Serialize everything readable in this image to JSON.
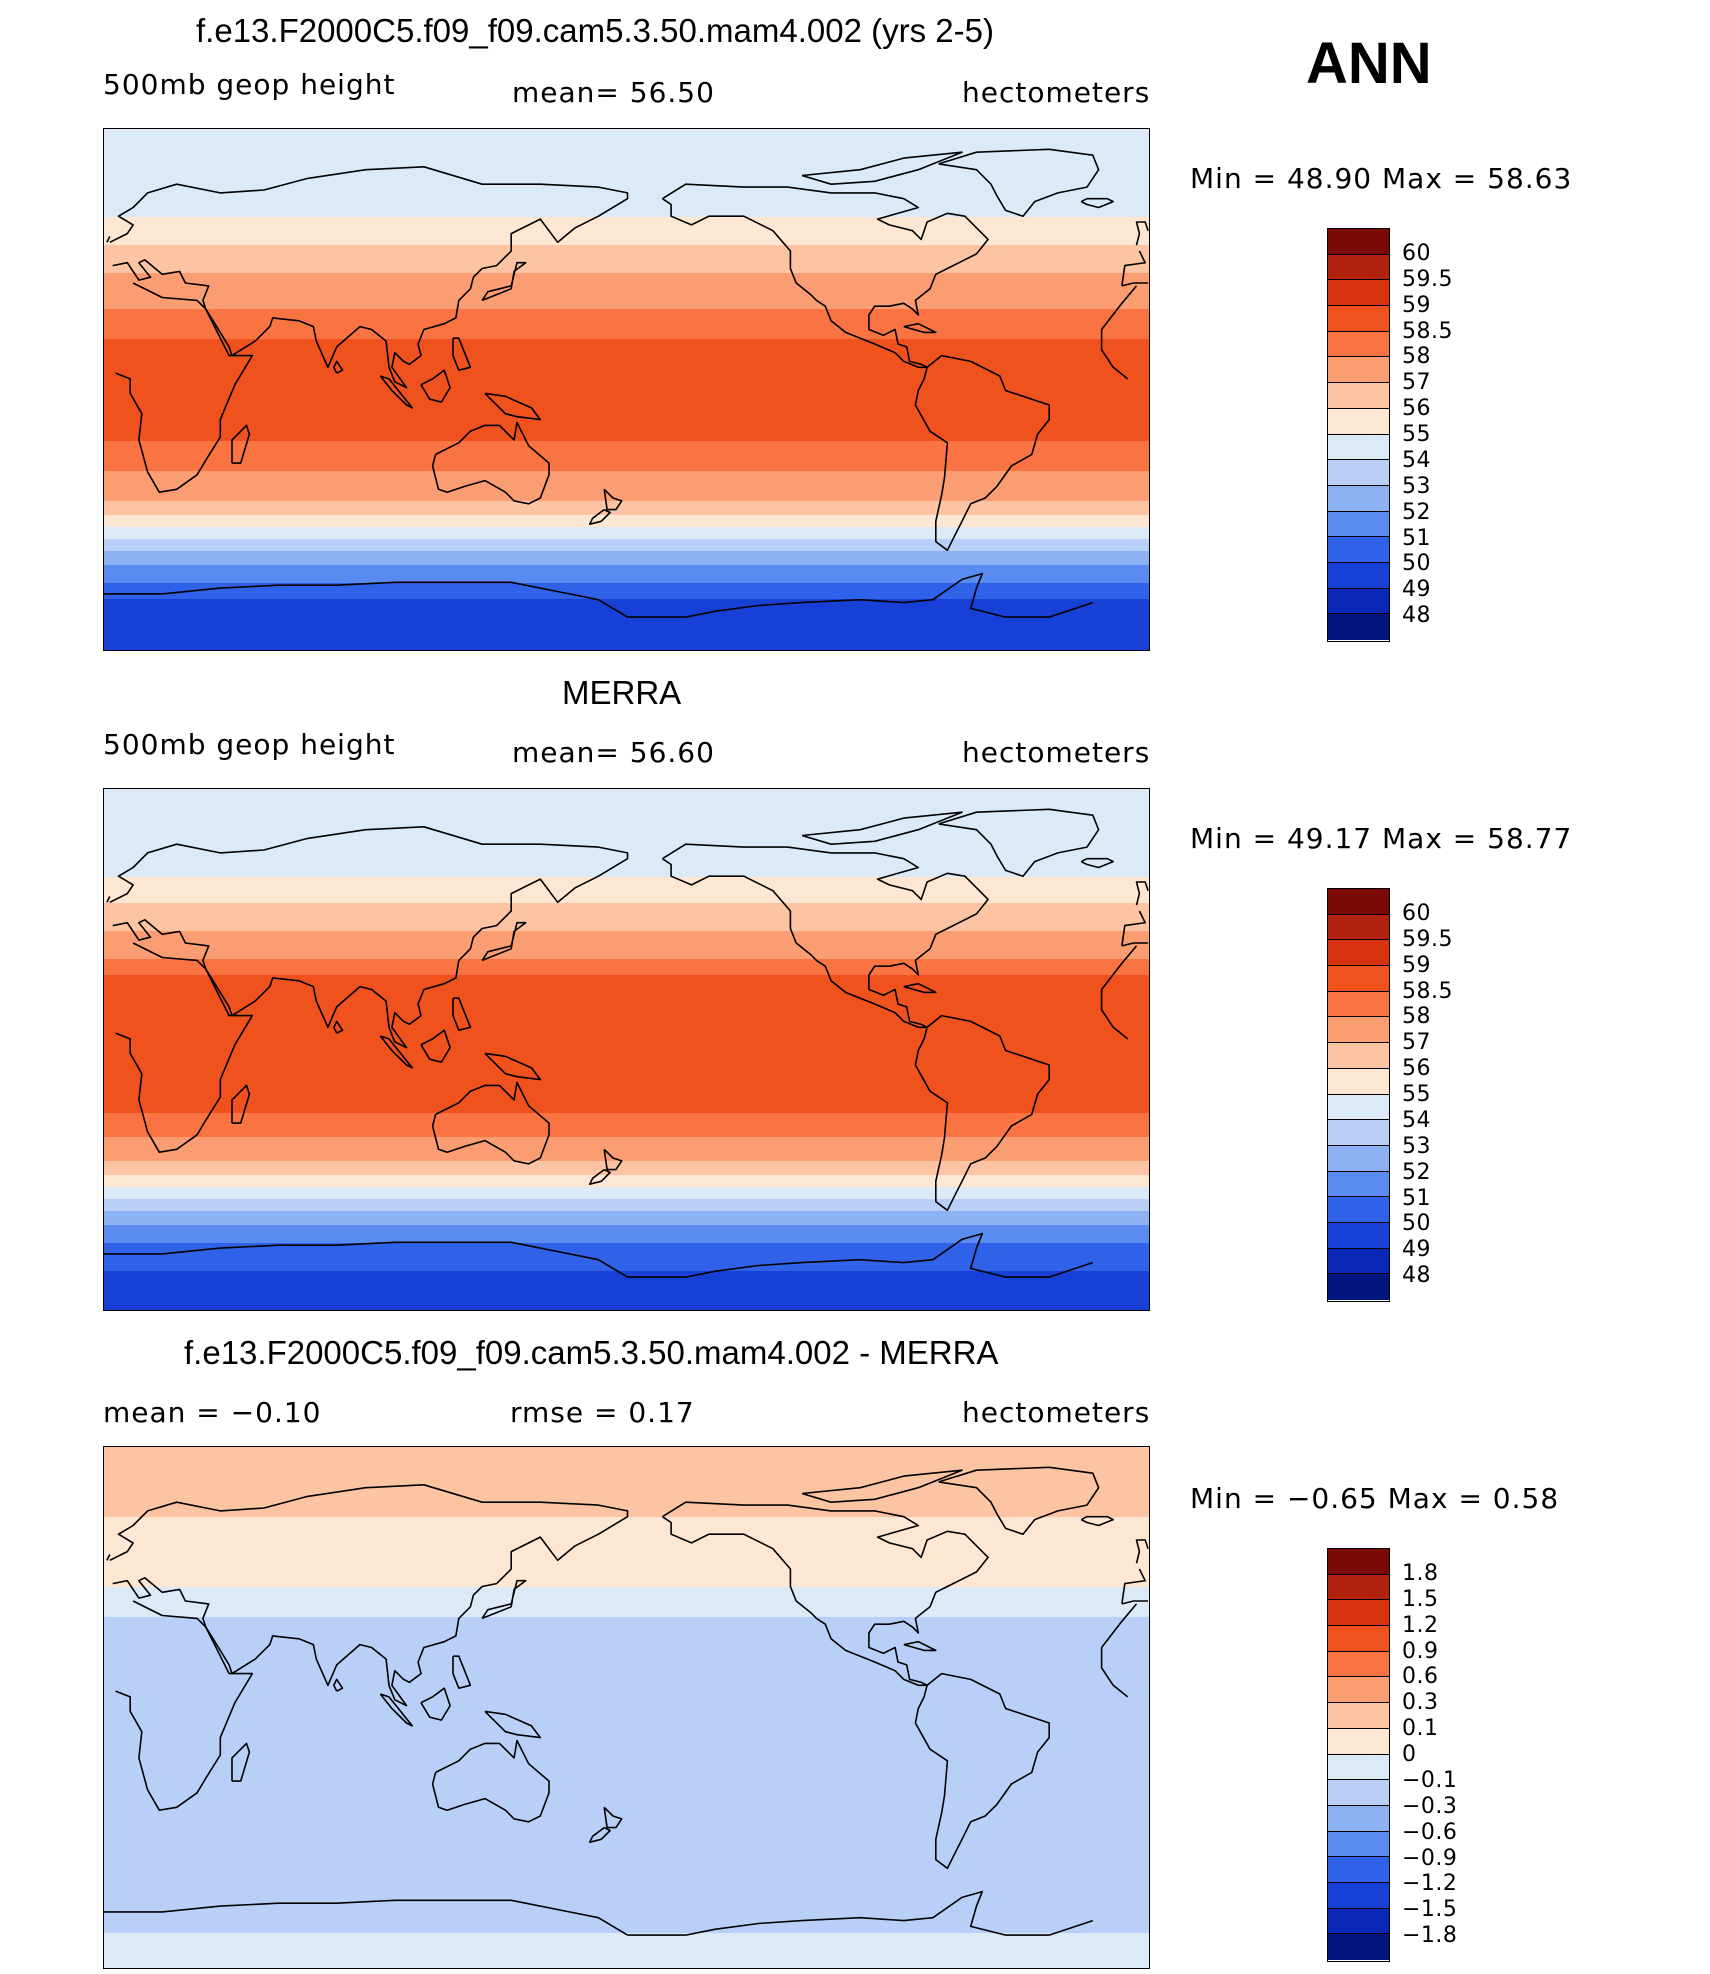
{
  "season": "ANN",
  "panels": [
    {
      "id": "model",
      "title": "f.e13.F2000C5.f09_f09.cam5.3.50.mam4.002 (yrs 2-5)",
      "left": "500mb  geop  height",
      "mid": "mean=   56.50",
      "units": "hectometers",
      "minmax": "Min  =    48.90  Max  =    58.63",
      "colorbar_labels": [
        "60",
        "59.5",
        "59",
        "58.5",
        "58",
        "57",
        "56",
        "55",
        "54",
        "53",
        "52",
        "51",
        "50",
        "49",
        "48"
      ],
      "colorbar_colors": [
        "#7a0a06",
        "#b2220f",
        "#d7330f",
        "#f0521e",
        "#f97442",
        "#fb9d72",
        "#fcc4a2",
        "#fde6d2",
        "#dceaf8",
        "#b8d0f7",
        "#8db2f4",
        "#5a8bf0",
        "#2f62e8",
        "#1740d6",
        "#0a27b8",
        "#03147e"
      ],
      "bands": [
        {
          "lat": 90,
          "value": 54.5
        },
        {
          "lat": 75,
          "value": 54.0
        },
        {
          "lat": 65,
          "value": 54.5
        },
        {
          "lat": 55,
          "value": 55.5
        },
        {
          "lat": 45,
          "value": 56.5
        },
        {
          "lat": 35,
          "value": 57.6
        },
        {
          "lat": 25,
          "value": 58.2
        },
        {
          "lat": 15,
          "value": 58.6
        },
        {
          "lat": 0,
          "value": 58.6
        },
        {
          "lat": -15,
          "value": 58.6
        },
        {
          "lat": -25,
          "value": 58.2
        },
        {
          "lat": -35,
          "value": 57.5
        },
        {
          "lat": -42,
          "value": 56.3
        },
        {
          "lat": -50,
          "value": 54.2
        },
        {
          "lat": -58,
          "value": 52.3
        },
        {
          "lat": -65,
          "value": 51.2
        },
        {
          "lat": -72,
          "value": 50.0
        },
        {
          "lat": -80,
          "value": 49.3
        },
        {
          "lat": -90,
          "value": 49.2
        }
      ]
    },
    {
      "id": "obs",
      "title": "MERRA",
      "left": "500mb  geop  height",
      "mid": "mean=   56.60",
      "units": "hectometers",
      "minmax": "Min  =    49.17  Max  =    58.77",
      "colorbar_labels": [
        "60",
        "59.5",
        "59",
        "58.5",
        "58",
        "57",
        "56",
        "55",
        "54",
        "53",
        "52",
        "51",
        "50",
        "49",
        "48"
      ],
      "colorbar_colors": [
        "#7a0a06",
        "#b2220f",
        "#d7330f",
        "#f0521e",
        "#f97442",
        "#fb9d72",
        "#fcc4a2",
        "#fde6d2",
        "#dceaf8",
        "#b8d0f7",
        "#8db2f4",
        "#5a8bf0",
        "#2f62e8",
        "#1740d6",
        "#0a27b8",
        "#03147e"
      ],
      "bands": [
        {
          "lat": 90,
          "value": 54.4
        },
        {
          "lat": 75,
          "value": 54.0
        },
        {
          "lat": 65,
          "value": 54.5
        },
        {
          "lat": 55,
          "value": 55.5
        },
        {
          "lat": 45,
          "value": 56.6
        },
        {
          "lat": 35,
          "value": 57.7
        },
        {
          "lat": 25,
          "value": 58.6
        },
        {
          "lat": 15,
          "value": 58.7
        },
        {
          "lat": 0,
          "value": 58.7
        },
        {
          "lat": -15,
          "value": 58.7
        },
        {
          "lat": -25,
          "value": 58.4
        },
        {
          "lat": -35,
          "value": 57.6
        },
        {
          "lat": -42,
          "value": 56.2
        },
        {
          "lat": -50,
          "value": 54.2
        },
        {
          "lat": -58,
          "value": 52.3
        },
        {
          "lat": -65,
          "value": 51.2
        },
        {
          "lat": -72,
          "value": 50.3
        },
        {
          "lat": -80,
          "value": 49.7
        },
        {
          "lat": -90,
          "value": 49.5
        }
      ]
    },
    {
      "id": "diff",
      "title": "f.e13.F2000C5.f09_f09.cam5.3.50.mam4.002 - MERRA",
      "left": "mean  =    −0.10",
      "mid": "rmse  =     0.17",
      "units": "hectometers",
      "minmax": "Min  =    −0.65  Max  =      0.58",
      "colorbar_labels": [
        "1.8",
        "1.5",
        "1.2",
        "0.9",
        "0.6",
        "0.3",
        "0.1",
        "0",
        "−0.1",
        "−0.3",
        "−0.6",
        "−0.9",
        "−1.2",
        "−1.5",
        "−1.8"
      ],
      "colorbar_colors": [
        "#7a0a06",
        "#b2220f",
        "#d7330f",
        "#f0521e",
        "#f97442",
        "#fb9d72",
        "#fcc4a2",
        "#fde6d2",
        "#dceaf8",
        "#b8d0f7",
        "#8db2f4",
        "#5a8bf0",
        "#2f62e8",
        "#1740d6",
        "#0a27b8",
        "#03147e"
      ],
      "bands": [
        {
          "lat": 90,
          "value": 0.15
        },
        {
          "lat": 70,
          "value": 0.12
        },
        {
          "lat": 55,
          "value": 0.05
        },
        {
          "lat": 45,
          "value": 0.05
        },
        {
          "lat": 38,
          "value": -0.05
        },
        {
          "lat": 25,
          "value": -0.15
        },
        {
          "lat": 10,
          "value": -0.15
        },
        {
          "lat": -10,
          "value": -0.15
        },
        {
          "lat": -30,
          "value": -0.12
        },
        {
          "lat": -45,
          "value": -0.15
        },
        {
          "lat": -55,
          "value": -0.25
        },
        {
          "lat": -65,
          "value": -0.2
        },
        {
          "lat": -80,
          "value": -0.08
        },
        {
          "lat": -90,
          "value": -0.05
        }
      ]
    }
  ]
}
